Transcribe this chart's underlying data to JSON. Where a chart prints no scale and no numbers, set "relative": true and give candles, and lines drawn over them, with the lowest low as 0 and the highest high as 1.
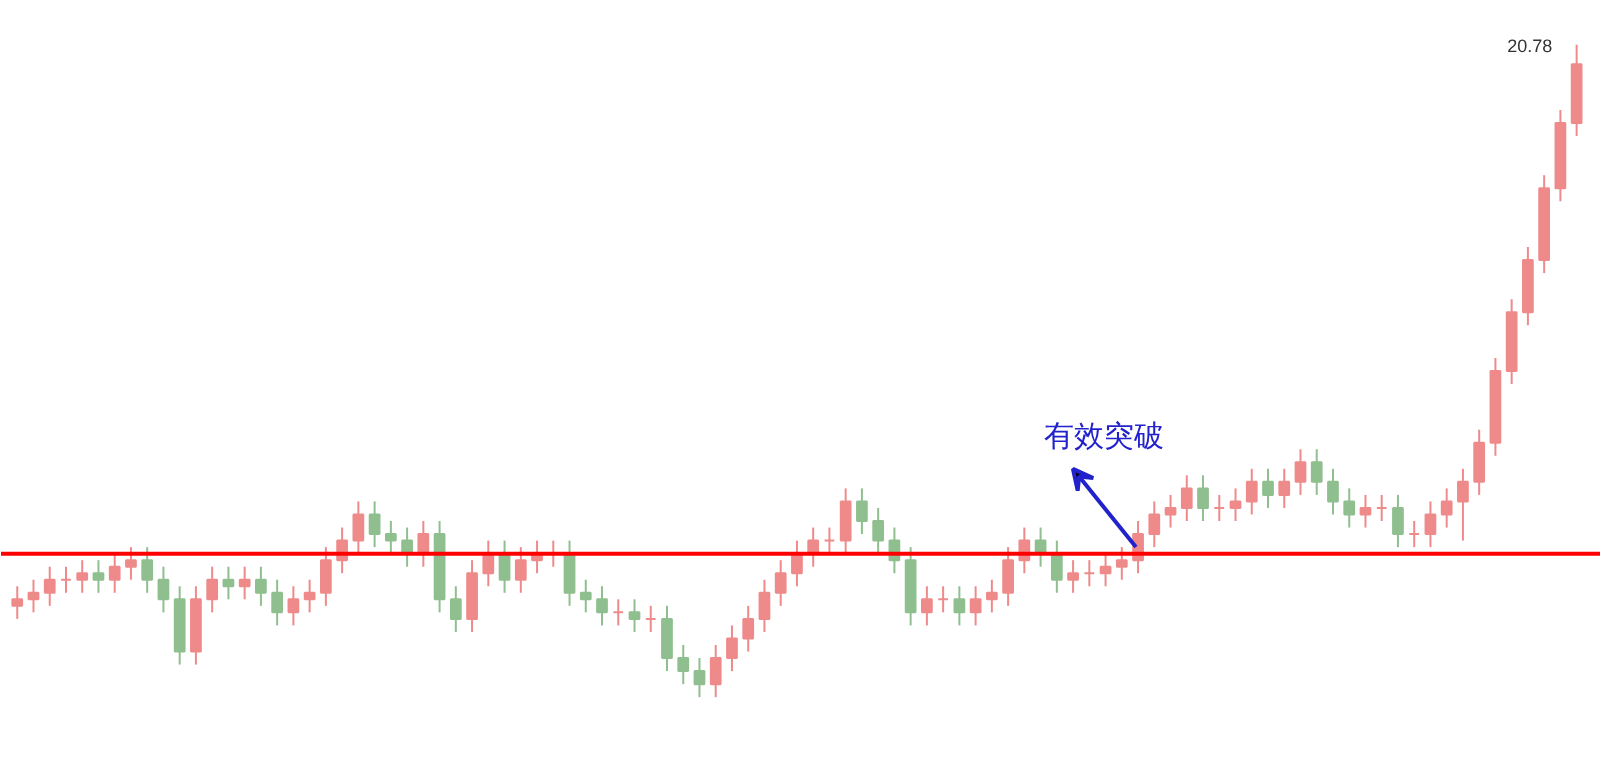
{
  "chart_data": {
    "type": "candlestick",
    "relative": true,
    "categories": [
      null,
      null,
      null,
      null,
      null,
      null,
      null,
      null,
      null,
      null,
      null,
      null,
      null,
      null,
      null,
      null,
      null,
      null,
      null,
      null,
      null,
      null,
      null,
      null,
      null,
      null,
      null,
      null,
      null,
      null,
      null,
      null,
      null,
      null,
      null,
      null,
      null,
      null,
      null,
      null,
      null,
      null,
      null,
      null,
      null,
      null,
      null,
      null,
      null,
      null,
      null,
      null,
      null,
      null,
      null,
      null,
      null,
      null,
      null,
      null,
      null,
      null,
      null,
      null,
      null,
      null,
      null,
      null,
      null,
      null,
      null,
      null,
      null,
      null,
      null,
      null,
      null,
      null,
      null,
      null,
      null,
      null,
      null,
      null,
      null,
      null,
      null,
      null,
      null,
      null,
      null,
      null,
      null,
      null,
      null,
      null,
      null
    ],
    "ohlc": [
      [
        0.14,
        0.17,
        0.12,
        0.15
      ],
      [
        0.15,
        0.18,
        0.13,
        0.16
      ],
      [
        0.16,
        0.2,
        0.14,
        0.18
      ],
      [
        0.18,
        0.2,
        0.16,
        0.18
      ],
      [
        0.18,
        0.21,
        0.16,
        0.19
      ],
      [
        0.19,
        0.21,
        0.16,
        0.18
      ],
      [
        0.18,
        0.22,
        0.16,
        0.2
      ],
      [
        0.2,
        0.23,
        0.18,
        0.21
      ],
      [
        0.21,
        0.23,
        0.16,
        0.18
      ],
      [
        0.18,
        0.2,
        0.13,
        0.15
      ],
      [
        0.15,
        0.17,
        0.05,
        0.07
      ],
      [
        0.07,
        0.17,
        0.05,
        0.15
      ],
      [
        0.15,
        0.2,
        0.13,
        0.18
      ],
      [
        0.18,
        0.2,
        0.15,
        0.17
      ],
      [
        0.17,
        0.2,
        0.15,
        0.18
      ],
      [
        0.18,
        0.2,
        0.14,
        0.16
      ],
      [
        0.16,
        0.18,
        0.11,
        0.13
      ],
      [
        0.13,
        0.17,
        0.11,
        0.15
      ],
      [
        0.15,
        0.18,
        0.13,
        0.16
      ],
      [
        0.16,
        0.23,
        0.14,
        0.21
      ],
      [
        0.21,
        0.26,
        0.19,
        0.24
      ],
      [
        0.24,
        0.3,
        0.22,
        0.28
      ],
      [
        0.28,
        0.3,
        0.23,
        0.25
      ],
      [
        0.25,
        0.27,
        0.22,
        0.24
      ],
      [
        0.24,
        0.26,
        0.2,
        0.22
      ],
      [
        0.22,
        0.27,
        0.2,
        0.25
      ],
      [
        0.25,
        0.27,
        0.13,
        0.15
      ],
      [
        0.15,
        0.17,
        0.1,
        0.12
      ],
      [
        0.12,
        0.21,
        0.1,
        0.19
      ],
      [
        0.19,
        0.24,
        0.17,
        0.22
      ],
      [
        0.22,
        0.24,
        0.16,
        0.18
      ],
      [
        0.18,
        0.23,
        0.16,
        0.21
      ],
      [
        0.21,
        0.24,
        0.19,
        0.22
      ],
      [
        0.22,
        0.24,
        0.2,
        0.22
      ],
      [
        0.22,
        0.24,
        0.14,
        0.16
      ],
      [
        0.16,
        0.18,
        0.13,
        0.15
      ],
      [
        0.15,
        0.17,
        0.11,
        0.13
      ],
      [
        0.13,
        0.15,
        0.11,
        0.13
      ],
      [
        0.13,
        0.15,
        0.1,
        0.12
      ],
      [
        0.12,
        0.14,
        0.1,
        0.12
      ],
      [
        0.12,
        0.14,
        0.04,
        0.06
      ],
      [
        0.06,
        0.08,
        0.02,
        0.04
      ],
      [
        0.04,
        0.06,
        0.0,
        0.02
      ],
      [
        0.02,
        0.08,
        0.0,
        0.06
      ],
      [
        0.06,
        0.11,
        0.04,
        0.09
      ],
      [
        0.09,
        0.14,
        0.07,
        0.12
      ],
      [
        0.12,
        0.18,
        0.1,
        0.16
      ],
      [
        0.16,
        0.21,
        0.14,
        0.19
      ],
      [
        0.19,
        0.24,
        0.17,
        0.22
      ],
      [
        0.22,
        0.26,
        0.2,
        0.24
      ],
      [
        0.24,
        0.26,
        0.22,
        0.24
      ],
      [
        0.24,
        0.32,
        0.22,
        0.3
      ],
      [
        0.3,
        0.32,
        0.25,
        0.27
      ],
      [
        0.27,
        0.29,
        0.22,
        0.24
      ],
      [
        0.24,
        0.26,
        0.19,
        0.21
      ],
      [
        0.21,
        0.23,
        0.11,
        0.13
      ],
      [
        0.13,
        0.17,
        0.11,
        0.15
      ],
      [
        0.15,
        0.17,
        0.13,
        0.15
      ],
      [
        0.15,
        0.17,
        0.11,
        0.13
      ],
      [
        0.13,
        0.17,
        0.11,
        0.15
      ],
      [
        0.15,
        0.18,
        0.13,
        0.16
      ],
      [
        0.16,
        0.23,
        0.14,
        0.21
      ],
      [
        0.21,
        0.26,
        0.19,
        0.24
      ],
      [
        0.24,
        0.26,
        0.2,
        0.22
      ],
      [
        0.22,
        0.24,
        0.16,
        0.18
      ],
      [
        0.18,
        0.21,
        0.16,
        0.19
      ],
      [
        0.19,
        0.21,
        0.17,
        0.19
      ],
      [
        0.19,
        0.22,
        0.17,
        0.2
      ],
      [
        0.2,
        0.23,
        0.18,
        0.21
      ],
      [
        0.21,
        0.27,
        0.19,
        0.25
      ],
      [
        0.25,
        0.3,
        0.23,
        0.28
      ],
      [
        0.28,
        0.31,
        0.26,
        0.29
      ],
      [
        0.29,
        0.34,
        0.27,
        0.32
      ],
      [
        0.32,
        0.34,
        0.27,
        0.29
      ],
      [
        0.29,
        0.31,
        0.27,
        0.29
      ],
      [
        0.29,
        0.32,
        0.27,
        0.3
      ],
      [
        0.3,
        0.35,
        0.28,
        0.33
      ],
      [
        0.33,
        0.35,
        0.29,
        0.31
      ],
      [
        0.31,
        0.35,
        0.29,
        0.33
      ],
      [
        0.33,
        0.38,
        0.31,
        0.36
      ],
      [
        0.36,
        0.38,
        0.31,
        0.33
      ],
      [
        0.33,
        0.35,
        0.28,
        0.3
      ],
      [
        0.3,
        0.32,
        0.26,
        0.28
      ],
      [
        0.28,
        0.31,
        0.26,
        0.29
      ],
      [
        0.29,
        0.31,
        0.27,
        0.29
      ],
      [
        0.29,
        0.31,
        0.23,
        0.25
      ],
      [
        0.25,
        0.27,
        0.23,
        0.25
      ],
      [
        0.25,
        0.3,
        0.23,
        0.28
      ],
      [
        0.28,
        0.32,
        0.26,
        0.3
      ],
      [
        0.3,
        0.35,
        0.24,
        0.33
      ],
      [
        0.33,
        0.41,
        0.31,
        0.39
      ],
      [
        0.39,
        0.52,
        0.37,
        0.5
      ],
      [
        0.5,
        0.61,
        0.48,
        0.59
      ],
      [
        0.59,
        0.69,
        0.57,
        0.67
      ],
      [
        0.67,
        0.8,
        0.65,
        0.78
      ],
      [
        0.78,
        0.9,
        0.76,
        0.88
      ],
      [
        0.88,
        1.0,
        0.86,
        0.97
      ]
    ],
    "colors": [
      "#ef8a8a",
      "#ef8a8a",
      "#ef8a8a",
      "#ef8a8a",
      "#ef8a8a",
      "#8fbf8f",
      "#ef8a8a",
      "#ef8a8a",
      "#8fbf8f",
      "#8fbf8f",
      "#8fbf8f",
      "#ef8a8a",
      "#ef8a8a",
      "#8fbf8f",
      "#ef8a8a",
      "#8fbf8f",
      "#8fbf8f",
      "#ef8a8a",
      "#ef8a8a",
      "#ef8a8a",
      "#ef8a8a",
      "#ef8a8a",
      "#8fbf8f",
      "#8fbf8f",
      "#8fbf8f",
      "#ef8a8a",
      "#8fbf8f",
      "#8fbf8f",
      "#ef8a8a",
      "#ef8a8a",
      "#8fbf8f",
      "#ef8a8a",
      "#ef8a8a",
      "#ef8a8a",
      "#8fbf8f",
      "#8fbf8f",
      "#8fbf8f",
      "#ef8a8a",
      "#8fbf8f",
      "#ef8a8a",
      "#8fbf8f",
      "#8fbf8f",
      "#8fbf8f",
      "#ef8a8a",
      "#ef8a8a",
      "#ef8a8a",
      "#ef8a8a",
      "#ef8a8a",
      "#ef8a8a",
      "#ef8a8a",
      "#ef8a8a",
      "#ef8a8a",
      "#8fbf8f",
      "#8fbf8f",
      "#8fbf8f",
      "#8fbf8f",
      "#ef8a8a",
      "#ef8a8a",
      "#8fbf8f",
      "#ef8a8a",
      "#ef8a8a",
      "#ef8a8a",
      "#ef8a8a",
      "#8fbf8f",
      "#8fbf8f",
      "#ef8a8a",
      "#ef8a8a",
      "#ef8a8a",
      "#ef8a8a",
      "#ef8a8a",
      "#ef8a8a",
      "#ef8a8a",
      "#ef8a8a",
      "#8fbf8f",
      "#ef8a8a",
      "#ef8a8a",
      "#ef8a8a",
      "#8fbf8f",
      "#ef8a8a",
      "#ef8a8a",
      "#8fbf8f",
      "#8fbf8f",
      "#8fbf8f",
      "#ef8a8a",
      "#ef8a8a",
      "#8fbf8f",
      "#ef8a8a",
      "#ef8a8a",
      "#ef8a8a",
      "#ef8a8a",
      "#ef8a8a",
      "#ef8a8a",
      "#ef8a8a",
      "#ef8a8a",
      "#ef8a8a",
      "#ef8a8a",
      "#ef8a8a"
    ],
    "ref_lines": [
      {
        "axis": "y",
        "value": 0.22,
        "color": "#ff0000"
      }
    ],
    "annotations": [
      "20.78",
      "有效突破"
    ]
  }
}
